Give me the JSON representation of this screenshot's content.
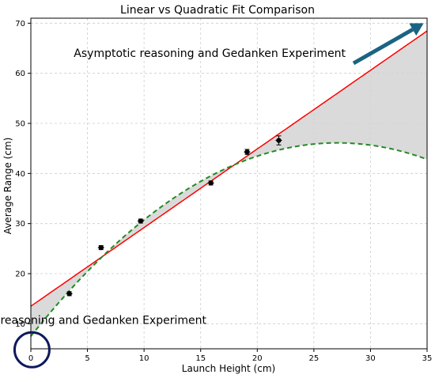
{
  "chart_data": {
    "type": "scatter",
    "title": "Linear vs Quadratic Fit Comparison",
    "xlabel": "Launch Height (cm)",
    "ylabel": "Average Range (cm)",
    "xlim": [
      0,
      35
    ],
    "ylim": [
      5,
      71
    ],
    "xticks": [
      0,
      5,
      10,
      15,
      20,
      25,
      30,
      35
    ],
    "yticks": [
      10,
      20,
      30,
      40,
      50,
      60,
      70
    ],
    "grid": true,
    "points": [
      {
        "x": 3.4,
        "y": 16.0,
        "err": 0.4
      },
      {
        "x": 6.2,
        "y": 25.2,
        "err": 0.4
      },
      {
        "x": 9.7,
        "y": 30.5,
        "err": 0.4
      },
      {
        "x": 15.9,
        "y": 38.1,
        "err": 0.4
      },
      {
        "x": 19.1,
        "y": 44.3,
        "err": 0.5
      },
      {
        "x": 21.9,
        "y": 46.6,
        "err": 0.9
      }
    ],
    "linear_fit": {
      "slope": 1.57,
      "intercept": 13.5,
      "color": "#ff0000"
    },
    "quadratic_fit": {
      "a": -0.0526,
      "b": 2.85,
      "c": 7.5,
      "color": "#228b22"
    },
    "shade_color": "#d3d3d3",
    "point_color": "#000000",
    "annotations": [
      {
        "text": "Asymptotic reasoning and Gedanken Experiment",
        "x": 15.8,
        "y": 63.3
      },
      {
        "text": "Asymptotic reasoning and Gedanken Experiment",
        "x": 3.5,
        "y": 10.0
      }
    ],
    "arrow": {
      "from": [
        28.5,
        62.0
      ],
      "to": [
        34.7,
        70.0
      ],
      "color": "#1b6382"
    },
    "circle": {
      "x": 0.1,
      "y": 4.8,
      "color": "#0f1a5c"
    }
  }
}
